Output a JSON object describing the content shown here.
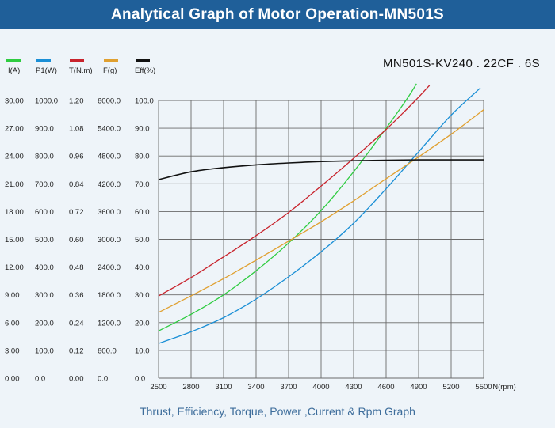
{
  "header": {
    "title": "Analytical Graph of Motor Operation-MN501S"
  },
  "model_label": "MN501S-KV240 . 22CF . 6S",
  "caption": "Thrust, Efficiency, Torque, Power ,Current & Rpm Graph",
  "chart_data": {
    "type": "line",
    "x_unit_label": "N(rpm)",
    "x_ticks": [
      2500,
      2800,
      3100,
      3400,
      3700,
      4000,
      4300,
      4600,
      4900,
      5200,
      5500
    ],
    "xlim": [
      2500,
      5500
    ],
    "grid": true,
    "legend_position": "top-left",
    "axes": [
      {
        "id": "I",
        "label": "I(A)",
        "color": "#2ecc40",
        "ticks": [
          "0.00",
          "3.00",
          "6.00",
          "9.00",
          "12.00",
          "15.00",
          "18.00",
          "21.00",
          "24.00",
          "27.00",
          "30.00"
        ],
        "ylim": [
          0,
          30
        ]
      },
      {
        "id": "P1",
        "label": "P1(W)",
        "color": "#1a8fd6",
        "ticks": [
          "0.0",
          "100.0",
          "200.0",
          "300.0",
          "400.0",
          "500.0",
          "600.0",
          "700.0",
          "800.0",
          "900.0",
          "1000.0"
        ],
        "ylim": [
          0,
          1000
        ]
      },
      {
        "id": "T",
        "label": "T(N.m)",
        "color": "#c8232c",
        "ticks": [
          "0.00",
          "0.12",
          "0.24",
          "0.36",
          "0.48",
          "0.60",
          "0.72",
          "0.84",
          "0.96",
          "1.08",
          "1.20"
        ],
        "ylim": [
          0,
          1.2
        ]
      },
      {
        "id": "F",
        "label": "F(g)",
        "color": "#e0a030",
        "ticks": [
          "0.0",
          "600.0",
          "1200.0",
          "1800.0",
          "2400.0",
          "3000.0",
          "3600.0",
          "4200.0",
          "4800.0",
          "5400.0",
          "6000.0"
        ],
        "ylim": [
          0,
          6000
        ]
      },
      {
        "id": "Eff",
        "label": "Eff(%)",
        "color": "#111111",
        "ticks": [
          "0.0",
          "10.0",
          "20.0",
          "30.0",
          "40.0",
          "50.0",
          "60.0",
          "70.0",
          "80.0",
          "90.0",
          "100.0"
        ],
        "ylim": [
          0,
          100
        ]
      }
    ],
    "series": [
      {
        "name": "I(A)",
        "axis": "I",
        "color": "#2ecc40",
        "x": [
          2500,
          2800,
          3100,
          3400,
          3700,
          4000,
          4300,
          4600,
          4800,
          4880
        ],
        "y": [
          5.1,
          6.9,
          9.0,
          11.6,
          14.6,
          18.1,
          22.3,
          27.0,
          30.3,
          31.8
        ]
      },
      {
        "name": "P1(W)",
        "axis": "P1",
        "color": "#1a8fd6",
        "x": [
          2500,
          2800,
          3100,
          3400,
          3700,
          4000,
          4300,
          4600,
          4900,
          5200,
          5470
        ],
        "y": [
          125,
          167,
          218,
          285,
          365,
          455,
          558,
          682,
          815,
          947,
          1045
        ]
      },
      {
        "name": "T(N.m)",
        "axis": "T",
        "color": "#c8232c",
        "x": [
          2500,
          2800,
          3100,
          3400,
          3700,
          4000,
          4300,
          4600,
          4860,
          5000
        ],
        "y": [
          0.355,
          0.435,
          0.524,
          0.616,
          0.716,
          0.83,
          0.95,
          1.075,
          1.195,
          1.265
        ]
      },
      {
        "name": "F(g)",
        "axis": "F",
        "color": "#e0a030",
        "x": [
          2500,
          2800,
          3100,
          3400,
          3700,
          4000,
          4300,
          4600,
          4900,
          5200,
          5500
        ],
        "y": [
          1420,
          1780,
          2150,
          2550,
          2960,
          3380,
          3830,
          4310,
          4780,
          5270,
          5800
        ]
      },
      {
        "name": "Eff(%)",
        "axis": "Eff",
        "color": "#111111",
        "x": [
          2500,
          2800,
          3100,
          3400,
          3700,
          4000,
          4300,
          4600,
          4900,
          5200,
          5500
        ],
        "y": [
          71.5,
          74.3,
          75.8,
          76.8,
          77.5,
          78.0,
          78.3,
          78.5,
          78.6,
          78.6,
          78.6
        ]
      }
    ]
  }
}
